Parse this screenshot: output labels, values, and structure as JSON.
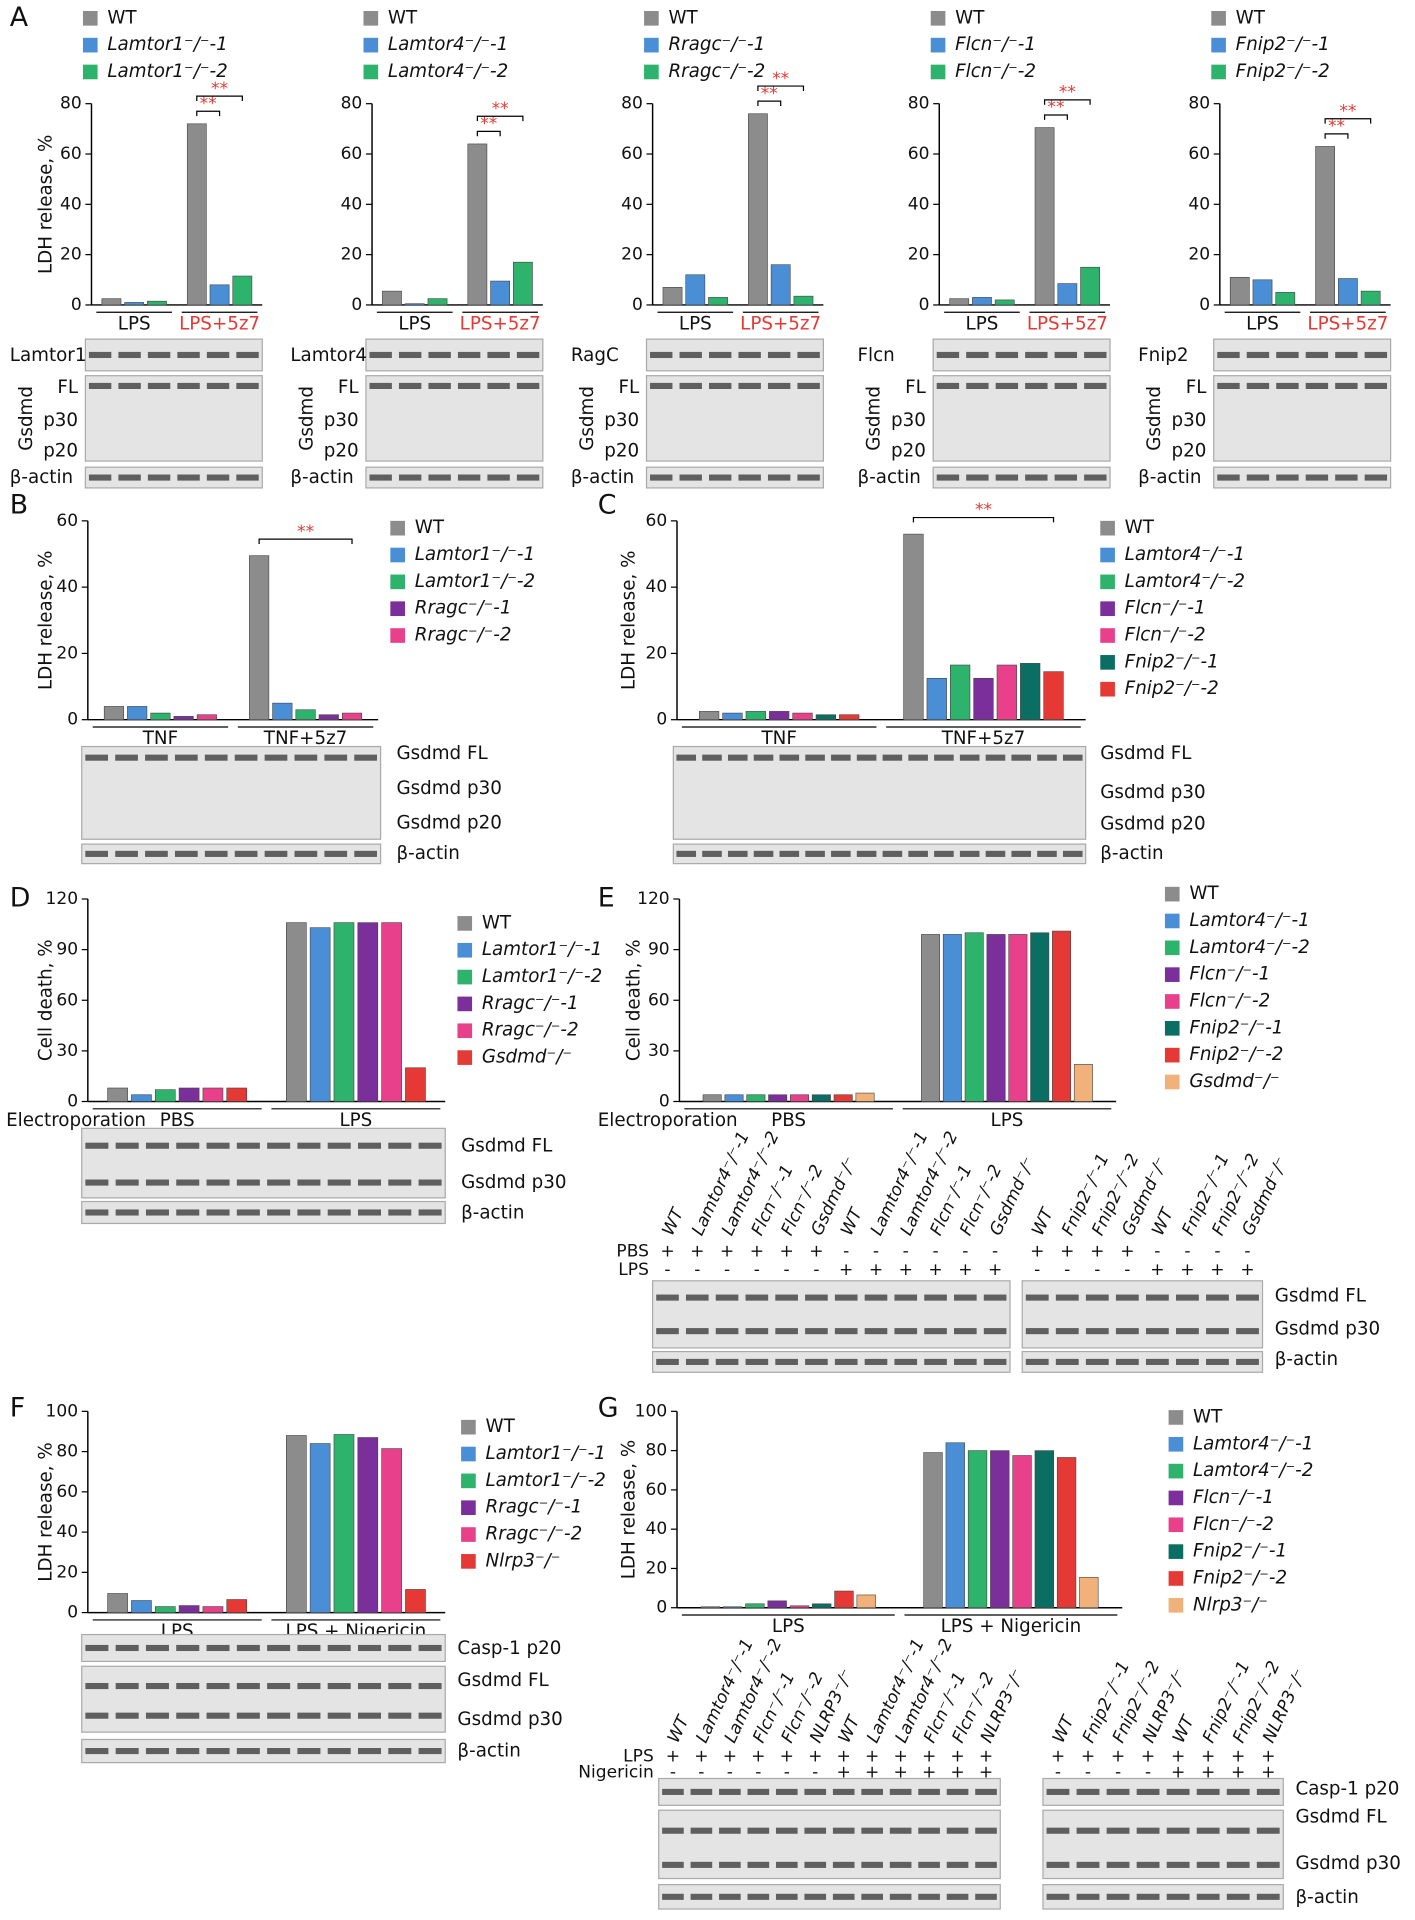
{
  "chart_data": [
    {
      "type": "bar",
      "panel": "A",
      "ylabel": "LDH release, %",
      "ylim": [
        0,
        80
      ],
      "yticks": [
        0,
        20,
        40,
        60,
        80
      ],
      "categories": [
        "LPS",
        "LPS+5z7"
      ],
      "category_colors": [
        "#111111",
        "#e53935"
      ],
      "series": [
        {
          "name": "WT",
          "color": "#8c8c8c",
          "values": [
            2.5,
            72
          ]
        },
        {
          "name": "Lamtor1⁻/⁻-1",
          "color": "#4a8fd6",
          "values": [
            1,
            8
          ]
        },
        {
          "name": "Lamtor1⁻/⁻-2",
          "color": "#2db36b",
          "values": [
            1.5,
            11.5
          ]
        }
      ],
      "annotations": [
        "**",
        "**"
      ],
      "annotation_color": "#e53935",
      "blot_labels": [
        "Lamtor1",
        "Gsdmd",
        "FL",
        "p30",
        "p20",
        "β-actin"
      ]
    },
    {
      "type": "bar",
      "ylim": [
        0,
        80
      ],
      "yticks": [
        0,
        20,
        40,
        60,
        80
      ],
      "categories": [
        "LPS",
        "LPS+5z7"
      ],
      "category_colors": [
        "#111111",
        "#e53935"
      ],
      "series": [
        {
          "name": "WT",
          "color": "#8c8c8c",
          "values": [
            5.5,
            64
          ]
        },
        {
          "name": "Lamtor4⁻/⁻-1",
          "color": "#4a8fd6",
          "values": [
            0.5,
            9.5
          ]
        },
        {
          "name": "Lamtor4⁻/⁻-2",
          "color": "#2db36b",
          "values": [
            2.5,
            17
          ]
        }
      ],
      "annotations": [
        "**",
        "**"
      ],
      "annotation_color": "#e53935",
      "blot_labels": [
        "Lamtor4",
        "Gsdmd",
        "FL",
        "p30",
        "p20",
        "β-actin"
      ]
    },
    {
      "type": "bar",
      "ylim": [
        0,
        80
      ],
      "yticks": [
        0,
        20,
        40,
        60,
        80
      ],
      "categories": [
        "LPS",
        "LPS+5z7"
      ],
      "category_colors": [
        "#111111",
        "#e53935"
      ],
      "series": [
        {
          "name": "WT",
          "color": "#8c8c8c",
          "values": [
            7,
            76
          ]
        },
        {
          "name": "Rragc⁻/⁻-1",
          "color": "#4a8fd6",
          "values": [
            12,
            16
          ]
        },
        {
          "name": "Rragc⁻/⁻-2",
          "color": "#2db36b",
          "values": [
            3,
            3.5
          ]
        }
      ],
      "annotations": [
        "**",
        "**"
      ],
      "annotation_color": "#e53935",
      "blot_labels": [
        "RagC",
        "Gsdmd",
        "FL",
        "p30",
        "p20",
        "β-actin"
      ]
    },
    {
      "type": "bar",
      "ylim": [
        0,
        80
      ],
      "yticks": [
        0,
        20,
        40,
        60,
        80
      ],
      "categories": [
        "LPS",
        "LPS+5z7"
      ],
      "category_colors": [
        "#111111",
        "#e53935"
      ],
      "series": [
        {
          "name": "WT",
          "color": "#8c8c8c",
          "values": [
            2.5,
            70.5
          ]
        },
        {
          "name": "Flcn⁻/⁻-1",
          "color": "#4a8fd6",
          "values": [
            3,
            8.5
          ]
        },
        {
          "name": "Flcn⁻/⁻-2",
          "color": "#2db36b",
          "values": [
            2,
            15
          ]
        }
      ],
      "annotations": [
        "**",
        "**"
      ],
      "annotation_color": "#e53935",
      "blot_labels": [
        "Flcn",
        "Gsdmd",
        "FL",
        "p30",
        "p20",
        "β-actin"
      ]
    },
    {
      "type": "bar",
      "ylim": [
        0,
        80
      ],
      "yticks": [
        0,
        20,
        40,
        60,
        80
      ],
      "categories": [
        "LPS",
        "LPS+5z7"
      ],
      "category_colors": [
        "#111111",
        "#e53935"
      ],
      "series": [
        {
          "name": "WT",
          "color": "#8c8c8c",
          "values": [
            11,
            63
          ]
        },
        {
          "name": "Fnip2⁻/⁻-1",
          "color": "#4a8fd6",
          "values": [
            10,
            10.5
          ]
        },
        {
          "name": "Fnip2⁻/⁻-2",
          "color": "#2db36b",
          "values": [
            5,
            5.5
          ]
        }
      ],
      "annotations": [
        "**",
        "**"
      ],
      "annotation_color": "#e53935",
      "blot_labels": [
        "Fnip2",
        "Gsdmd",
        "FL",
        "p30",
        "p20",
        "β-actin"
      ]
    },
    {
      "type": "bar",
      "panel": "B",
      "ylabel": "LDH release, %",
      "ylim": [
        0,
        60
      ],
      "yticks": [
        0,
        20,
        40,
        60
      ],
      "categories": [
        "TNF",
        "TNF+5z7"
      ],
      "series": [
        {
          "name": "WT",
          "color": "#8c8c8c",
          "values": [
            4,
            49.5
          ]
        },
        {
          "name": "Lamtor1⁻/⁻-1",
          "color": "#4a8fd6",
          "values": [
            4,
            5
          ]
        },
        {
          "name": "Lamtor1⁻/⁻-2",
          "color": "#2db36b",
          "values": [
            2,
            3
          ]
        },
        {
          "name": "Rragc⁻/⁻-1",
          "color": "#7b2f9a",
          "values": [
            1,
            1.5
          ]
        },
        {
          "name": "Rragc⁻/⁻-2",
          "color": "#e8408a",
          "values": [
            1.5,
            2
          ]
        }
      ],
      "annotations": [
        "**"
      ],
      "annotation_color": "#e53935",
      "blot_labels": [
        "Gsdmd FL",
        "Gsdmd p30",
        "Gsdmd p20",
        "β-actin"
      ]
    },
    {
      "type": "bar",
      "panel": "C",
      "ylabel": "LDH release, %",
      "ylim": [
        0,
        60
      ],
      "yticks": [
        0,
        20,
        40,
        60
      ],
      "categories": [
        "TNF",
        "TNF+5z7"
      ],
      "series": [
        {
          "name": "WT",
          "color": "#8c8c8c",
          "values": [
            2.5,
            56
          ]
        },
        {
          "name": "Lamtor4⁻/⁻-1",
          "color": "#4a8fd6",
          "values": [
            2,
            12.5
          ]
        },
        {
          "name": "Lamtor4⁻/⁻-2",
          "color": "#2db36b",
          "values": [
            2.5,
            16.5
          ]
        },
        {
          "name": "Flcn⁻/⁻-1",
          "color": "#7b2f9a",
          "values": [
            2.5,
            12.5
          ]
        },
        {
          "name": "Flcn⁻/⁻-2",
          "color": "#e8408a",
          "values": [
            2,
            16.5
          ]
        },
        {
          "name": "Fnip2⁻/⁻-1",
          "color": "#0b6e62",
          "values": [
            1.5,
            17
          ]
        },
        {
          "name": "Fnip2⁻/⁻-2",
          "color": "#e53935",
          "values": [
            1.5,
            14.5
          ]
        }
      ],
      "annotations": [
        "**"
      ],
      "annotation_color": "#e53935",
      "blot_labels": [
        "Gsdmd FL",
        "Gsdmd p30",
        "Gsdmd p20",
        "β-actin"
      ]
    },
    {
      "type": "bar",
      "panel": "D",
      "ylabel": "Cell death, %",
      "ylim": [
        0,
        120
      ],
      "yticks": [
        0,
        30,
        60,
        90,
        120
      ],
      "group_prefix": "Electroporation",
      "categories": [
        "PBS",
        "LPS"
      ],
      "series": [
        {
          "name": "WT",
          "color": "#8c8c8c",
          "values": [
            8,
            106
          ]
        },
        {
          "name": "Lamtor1⁻/⁻-1",
          "color": "#4a8fd6",
          "values": [
            4,
            103
          ]
        },
        {
          "name": "Lamtor1⁻/⁻-2",
          "color": "#2db36b",
          "values": [
            7,
            106
          ]
        },
        {
          "name": "Rragc⁻/⁻-1",
          "color": "#7b2f9a",
          "values": [
            8,
            106
          ]
        },
        {
          "name": "Rragc⁻/⁻-2",
          "color": "#e8408a",
          "values": [
            8,
            106
          ]
        },
        {
          "name": "Gsdmd⁻/⁻",
          "color": "#e53935",
          "values": [
            8,
            20
          ]
        }
      ],
      "blot_labels": [
        "Gsdmd FL",
        "Gsdmd p30",
        "β-actin"
      ]
    },
    {
      "type": "bar",
      "panel": "E",
      "ylabel": "Cell death, %",
      "ylim": [
        0,
        120
      ],
      "yticks": [
        0,
        30,
        60,
        90,
        120
      ],
      "group_prefix": "Electroporation",
      "categories": [
        "PBS",
        "LPS"
      ],
      "series": [
        {
          "name": "WT",
          "color": "#8c8c8c",
          "values": [
            4,
            99
          ]
        },
        {
          "name": "Lamtor4⁻/⁻-1",
          "color": "#4a8fd6",
          "values": [
            4,
            99
          ]
        },
        {
          "name": "Lamtor4⁻/⁻-2",
          "color": "#2db36b",
          "values": [
            4,
            100
          ]
        },
        {
          "name": "Flcn⁻/⁻-1",
          "color": "#7b2f9a",
          "values": [
            4,
            99
          ]
        },
        {
          "name": "Flcn⁻/⁻-2",
          "color": "#e8408a",
          "values": [
            4,
            99
          ]
        },
        {
          "name": "Fnip2⁻/⁻-1",
          "color": "#0b6e62",
          "values": [
            4,
            100
          ]
        },
        {
          "name": "Fnip2⁻/⁻-2",
          "color": "#e53935",
          "values": [
            4,
            101
          ]
        },
        {
          "name": "Gsdmd⁻/⁻",
          "color": "#f0b27a",
          "values": [
            5,
            22
          ]
        }
      ],
      "blot_labels": [
        "Gsdmd FL",
        "Gsdmd p30",
        "β-actin"
      ],
      "lane_sets": [
        {
          "names": [
            "WT",
            "Lamtor4⁻/⁻-1",
            "Lamtor4⁻/⁻-2",
            "Flcn⁻/⁻-1",
            "Flcn⁻/⁻-2",
            "Gsdmd⁻/⁻",
            "WT",
            "Lamtor4⁻/⁻-1",
            "Lamtor4⁻/⁻-2",
            "Flcn⁻/⁻-1",
            "Flcn⁻/⁻-2",
            "Gsdmd⁻/⁻"
          ],
          "rows": [
            {
              "label": "PBS",
              "signs": [
                "+",
                "+",
                "+",
                "+",
                "+",
                "+",
                "-",
                "-",
                "-",
                "-",
                "-",
                "-"
              ]
            },
            {
              "label": "LPS",
              "signs": [
                "-",
                "-",
                "-",
                "-",
                "-",
                "-",
                "+",
                "+",
                "+",
                "+",
                "+",
                "+"
              ]
            }
          ]
        },
        {
          "names": [
            "WT",
            "Fnip2⁻/⁻-1",
            "Fnip2⁻/⁻-2",
            "Gsdmd⁻/⁻",
            "WT",
            "Fnip2⁻/⁻-1",
            "Fnip2⁻/⁻-2",
            "Gsdmd⁻/⁻"
          ],
          "rows": [
            {
              "signs": [
                "+",
                "+",
                "+",
                "+",
                "-",
                "-",
                "-",
                "-"
              ]
            },
            {
              "signs": [
                "-",
                "-",
                "-",
                "-",
                "+",
                "+",
                "+",
                "+"
              ]
            }
          ]
        }
      ]
    },
    {
      "type": "bar",
      "panel": "F",
      "ylabel": "LDH release, %",
      "ylim": [
        0,
        100
      ],
      "yticks": [
        0,
        20,
        40,
        60,
        80,
        100
      ],
      "categories": [
        "LPS",
        "LPS + Nigericin"
      ],
      "series": [
        {
          "name": "WT",
          "color": "#8c8c8c",
          "values": [
            9.5,
            88
          ]
        },
        {
          "name": "Lamtor1⁻/⁻-1",
          "color": "#4a8fd6",
          "values": [
            6,
            84
          ]
        },
        {
          "name": "Lamtor1⁻/⁻-2",
          "color": "#2db36b",
          "values": [
            3,
            88.5
          ]
        },
        {
          "name": "Rragc⁻/⁻-1",
          "color": "#7b2f9a",
          "values": [
            3.5,
            87
          ]
        },
        {
          "name": "Rragc⁻/⁻-2",
          "color": "#e8408a",
          "values": [
            3,
            81.5
          ]
        },
        {
          "name": "Nlrp3⁻/⁻",
          "color": "#e53935",
          "values": [
            6.5,
            11.5
          ]
        }
      ],
      "blot_labels": [
        "Casp-1 p20",
        "Gsdmd FL",
        "Gsdmd p30",
        "β-actin"
      ]
    },
    {
      "type": "bar",
      "panel": "G",
      "ylabel": "LDH release, %",
      "ylim": [
        0,
        100
      ],
      "yticks": [
        0,
        20,
        40,
        60,
        80,
        100
      ],
      "categories": [
        "LPS",
        "LPS + Nigericin"
      ],
      "series": [
        {
          "name": "WT",
          "color": "#8c8c8c",
          "values": [
            0.5,
            79
          ]
        },
        {
          "name": "Lamtor4⁻/⁻-1",
          "color": "#4a8fd6",
          "values": [
            0.5,
            84
          ]
        },
        {
          "name": "Lamtor4⁻/⁻-2",
          "color": "#2db36b",
          "values": [
            2,
            80
          ]
        },
        {
          "name": "Flcn⁻/⁻-1",
          "color": "#7b2f9a",
          "values": [
            3.5,
            80
          ]
        },
        {
          "name": "Flcn⁻/⁻-2",
          "color": "#e8408a",
          "values": [
            1,
            77.5
          ]
        },
        {
          "name": "Fnip2⁻/⁻-1",
          "color": "#0b6e62",
          "values": [
            2,
            80
          ]
        },
        {
          "name": "Fnip2⁻/⁻-2",
          "color": "#e53935",
          "values": [
            8.5,
            76.5
          ]
        },
        {
          "name": "Nlrp3⁻/⁻",
          "color": "#f0b27a",
          "values": [
            6.5,
            15.5
          ]
        }
      ],
      "blot_labels": [
        "Casp-1 p20",
        "Gsdmd FL",
        "Gsdmd p30",
        "β-actin"
      ],
      "lane_sets": [
        {
          "names": [
            "WT",
            "Lamtor4⁻/⁻-1",
            "Lamtor4⁻/⁻-2",
            "Flcn⁻/⁻-1",
            "Flcn⁻/⁻-2",
            "NLRP3⁻/⁻",
            "WT",
            "Lamtor4⁻/⁻-1",
            "Lamtor4⁻/⁻-2",
            "Flcn⁻/⁻-1",
            "Flcn⁻/⁻-2",
            "NLRP3⁻/⁻"
          ],
          "rows": [
            {
              "label": "LPS",
              "signs": [
                "+",
                "+",
                "+",
                "+",
                "+",
                "+",
                "+",
                "+",
                "+",
                "+",
                "+",
                "+"
              ]
            },
            {
              "label": "Nigericin",
              "signs": [
                "-",
                "-",
                "-",
                "-",
                "-",
                "-",
                "+",
                "+",
                "+",
                "+",
                "+",
                "+"
              ]
            }
          ]
        },
        {
          "names": [
            "WT",
            "Fnip2⁻/⁻-1",
            "Fnip2⁻/⁻-2",
            "NLRP3⁻/⁻",
            "WT",
            "Fnip2⁻/⁻-1",
            "Fnip2⁻/⁻-2",
            "NLRP3⁻/⁻"
          ],
          "rows": [
            {
              "signs": [
                "+",
                "+",
                "+",
                "+",
                "+",
                "+",
                "+",
                "+"
              ]
            },
            {
              "signs": [
                "-",
                "-",
                "-",
                "-",
                "+",
                "+",
                "+",
                "+"
              ]
            }
          ]
        }
      ]
    }
  ]
}
